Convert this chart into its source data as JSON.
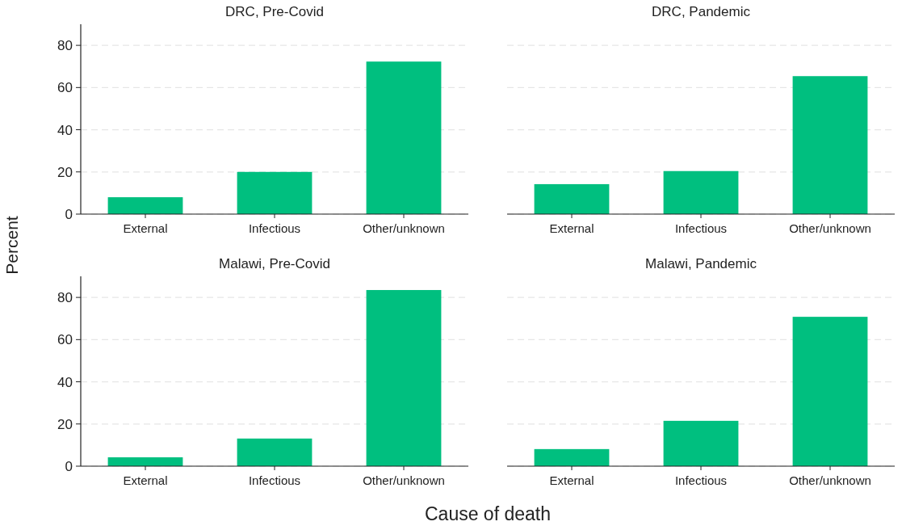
{
  "chart_data": [
    {
      "type": "bar",
      "title": "DRC, Pre-Covid",
      "ylabel": "Percent",
      "categories": [
        "External",
        "Infectious",
        "Other/unknown"
      ],
      "values": [
        8,
        20,
        72.3
      ],
      "color": "#00bf7f",
      "ylim": [
        0,
        90
      ],
      "yticks": [
        0,
        20,
        40,
        60,
        80
      ],
      "grid": "y"
    },
    {
      "type": "bar",
      "title": "DRC, Pandemic",
      "categories": [
        "External",
        "Infectious",
        "Other/unknown"
      ],
      "values": [
        14.2,
        20.4,
        65.4
      ],
      "color": "#00bf7f",
      "yticks": [
        0,
        20,
        40,
        60,
        80
      ],
      "grid": "y",
      "tick_labels": "x"
    },
    {
      "type": "bar",
      "title": "Malawi, Pre-Covid",
      "xlabel": "Cause of death",
      "categories": [
        "External",
        "Infectious",
        "Other/unknown"
      ],
      "values": [
        4.2,
        13.1,
        83.5
      ],
      "color": "#00bf7f",
      "ylim": [
        0,
        90
      ],
      "yticks": [
        0,
        20,
        40,
        60,
        80
      ],
      "grid": "y"
    },
    {
      "type": "bar",
      "title": "Malawi, Pandemic",
      "categories": [
        "External",
        "Infectious",
        "Other/unknown"
      ],
      "values": [
        8.1,
        21.5,
        70.8
      ],
      "color": "#00bf7f",
      "yticks": [
        0,
        20,
        40,
        60,
        80
      ],
      "grid": "y",
      "tick_labels": "x"
    }
  ]
}
